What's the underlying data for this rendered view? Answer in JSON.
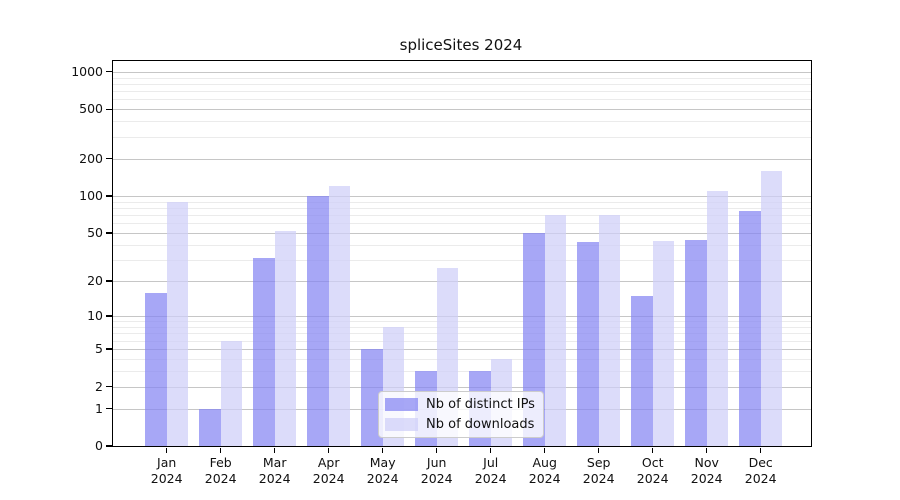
{
  "title": "spliceSites 2024",
  "colors": {
    "ips_fill": "rgba(133,133,242,0.72)",
    "downloads_fill": "rgba(206,206,248,0.72)",
    "grid_major": "#c6c6c6",
    "grid_minor": "#ebebeb",
    "axis": "#000000"
  },
  "legend": {
    "items": [
      {
        "label": "Nb of distinct IPs"
      },
      {
        "label": "Nb of downloads"
      }
    ]
  },
  "chart_data": {
    "type": "bar",
    "title": "spliceSites 2024",
    "categories": [
      "Jan 2024",
      "Feb 2024",
      "Mar 2024",
      "Apr 2024",
      "May 2024",
      "Jun 2024",
      "Jul 2024",
      "Aug 2024",
      "Sep 2024",
      "Oct 2024",
      "Nov 2024",
      "Dec 2024"
    ],
    "months": [
      "Jan",
      "Feb",
      "Mar",
      "Apr",
      "May",
      "Jun",
      "Jul",
      "Aug",
      "Sep",
      "Oct",
      "Nov",
      "Dec"
    ],
    "year": "2024",
    "series": [
      {
        "name": "Nb of distinct IPs",
        "key": "distinct-ips",
        "values": [
          16,
          1,
          31,
          101,
          5,
          3,
          3,
          50,
          42,
          15,
          44,
          75
        ]
      },
      {
        "name": "Nb of downloads",
        "key": "downloads",
        "values": [
          90,
          6,
          52,
          120,
          8,
          26,
          4,
          70,
          70,
          43,
          110,
          160
        ]
      }
    ],
    "xlabel": "",
    "ylabel": "",
    "yscale": "log1p",
    "ylim": [
      0,
      1200
    ],
    "y_major_ticks": [
      0,
      1,
      2,
      5,
      10,
      20,
      50,
      100,
      200,
      500,
      1000
    ],
    "y_minor_ticks": [
      3,
      4,
      6,
      7,
      8,
      9,
      30,
      40,
      60,
      70,
      80,
      90,
      300,
      400,
      600,
      700,
      800,
      900
    ],
    "grid": "on",
    "legend_position": "lower center"
  }
}
